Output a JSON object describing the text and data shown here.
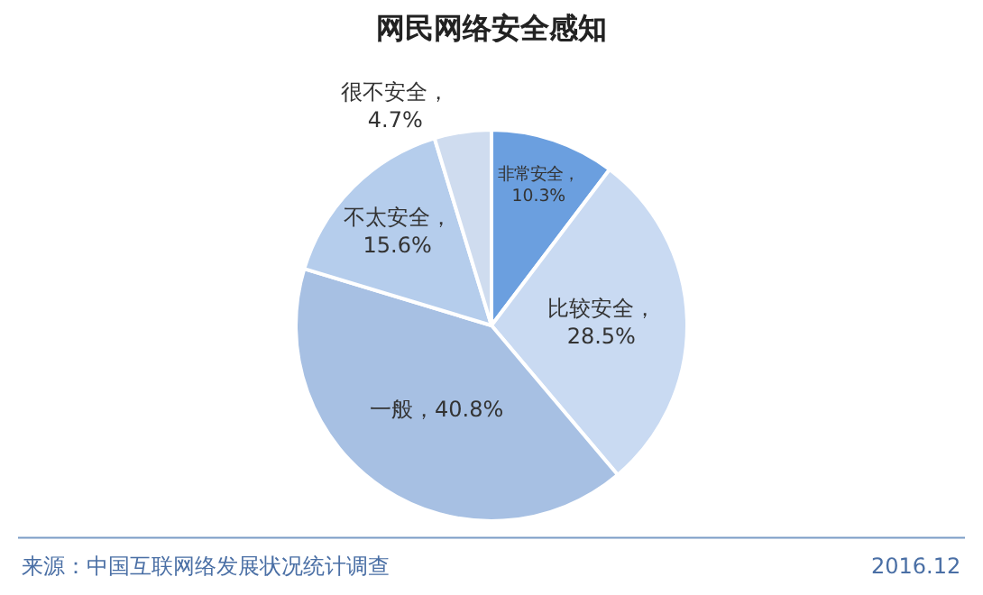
{
  "chart_data": {
    "type": "pie",
    "title": "网民网络安全感知",
    "categories": [
      "非常安全",
      "比较安全",
      "一般",
      "不太安全",
      "很不安全"
    ],
    "values": [
      10.3,
      28.5,
      40.8,
      15.6,
      4.7
    ],
    "value_labels": [
      "，\n10.3%",
      "，\n28.5%",
      "，40.8%",
      "，\n15.6%",
      "，\n4.7%"
    ],
    "colors": [
      "#6b9fdf",
      "#c9daf2",
      "#a7c0e3",
      "#b5cdec",
      "#cfdcef"
    ],
    "legend": false,
    "annotations": [
      "来源：中国互联网络发展状况统计调查",
      "2016.12"
    ]
  }
}
